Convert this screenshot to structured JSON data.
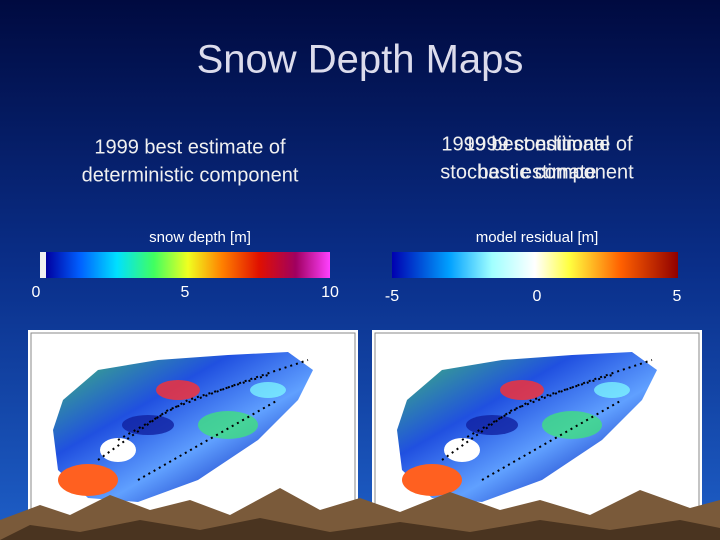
{
  "title": "Snow Depth Maps",
  "left_panel": {
    "caption": [
      "1999 best estimate of",
      "deterministic component"
    ],
    "colorbar_label": "snow depth [m]",
    "ticks": [
      0,
      5,
      10
    ]
  },
  "right_panel": {
    "caption": [
      "1999 best estimate of",
      "stochastic component"
    ],
    "overlay_caption": [
      "1999 conditional",
      "best estimate"
    ],
    "colorbar_label": "model residual [m]",
    "ticks": [
      -5,
      0,
      5
    ]
  }
}
